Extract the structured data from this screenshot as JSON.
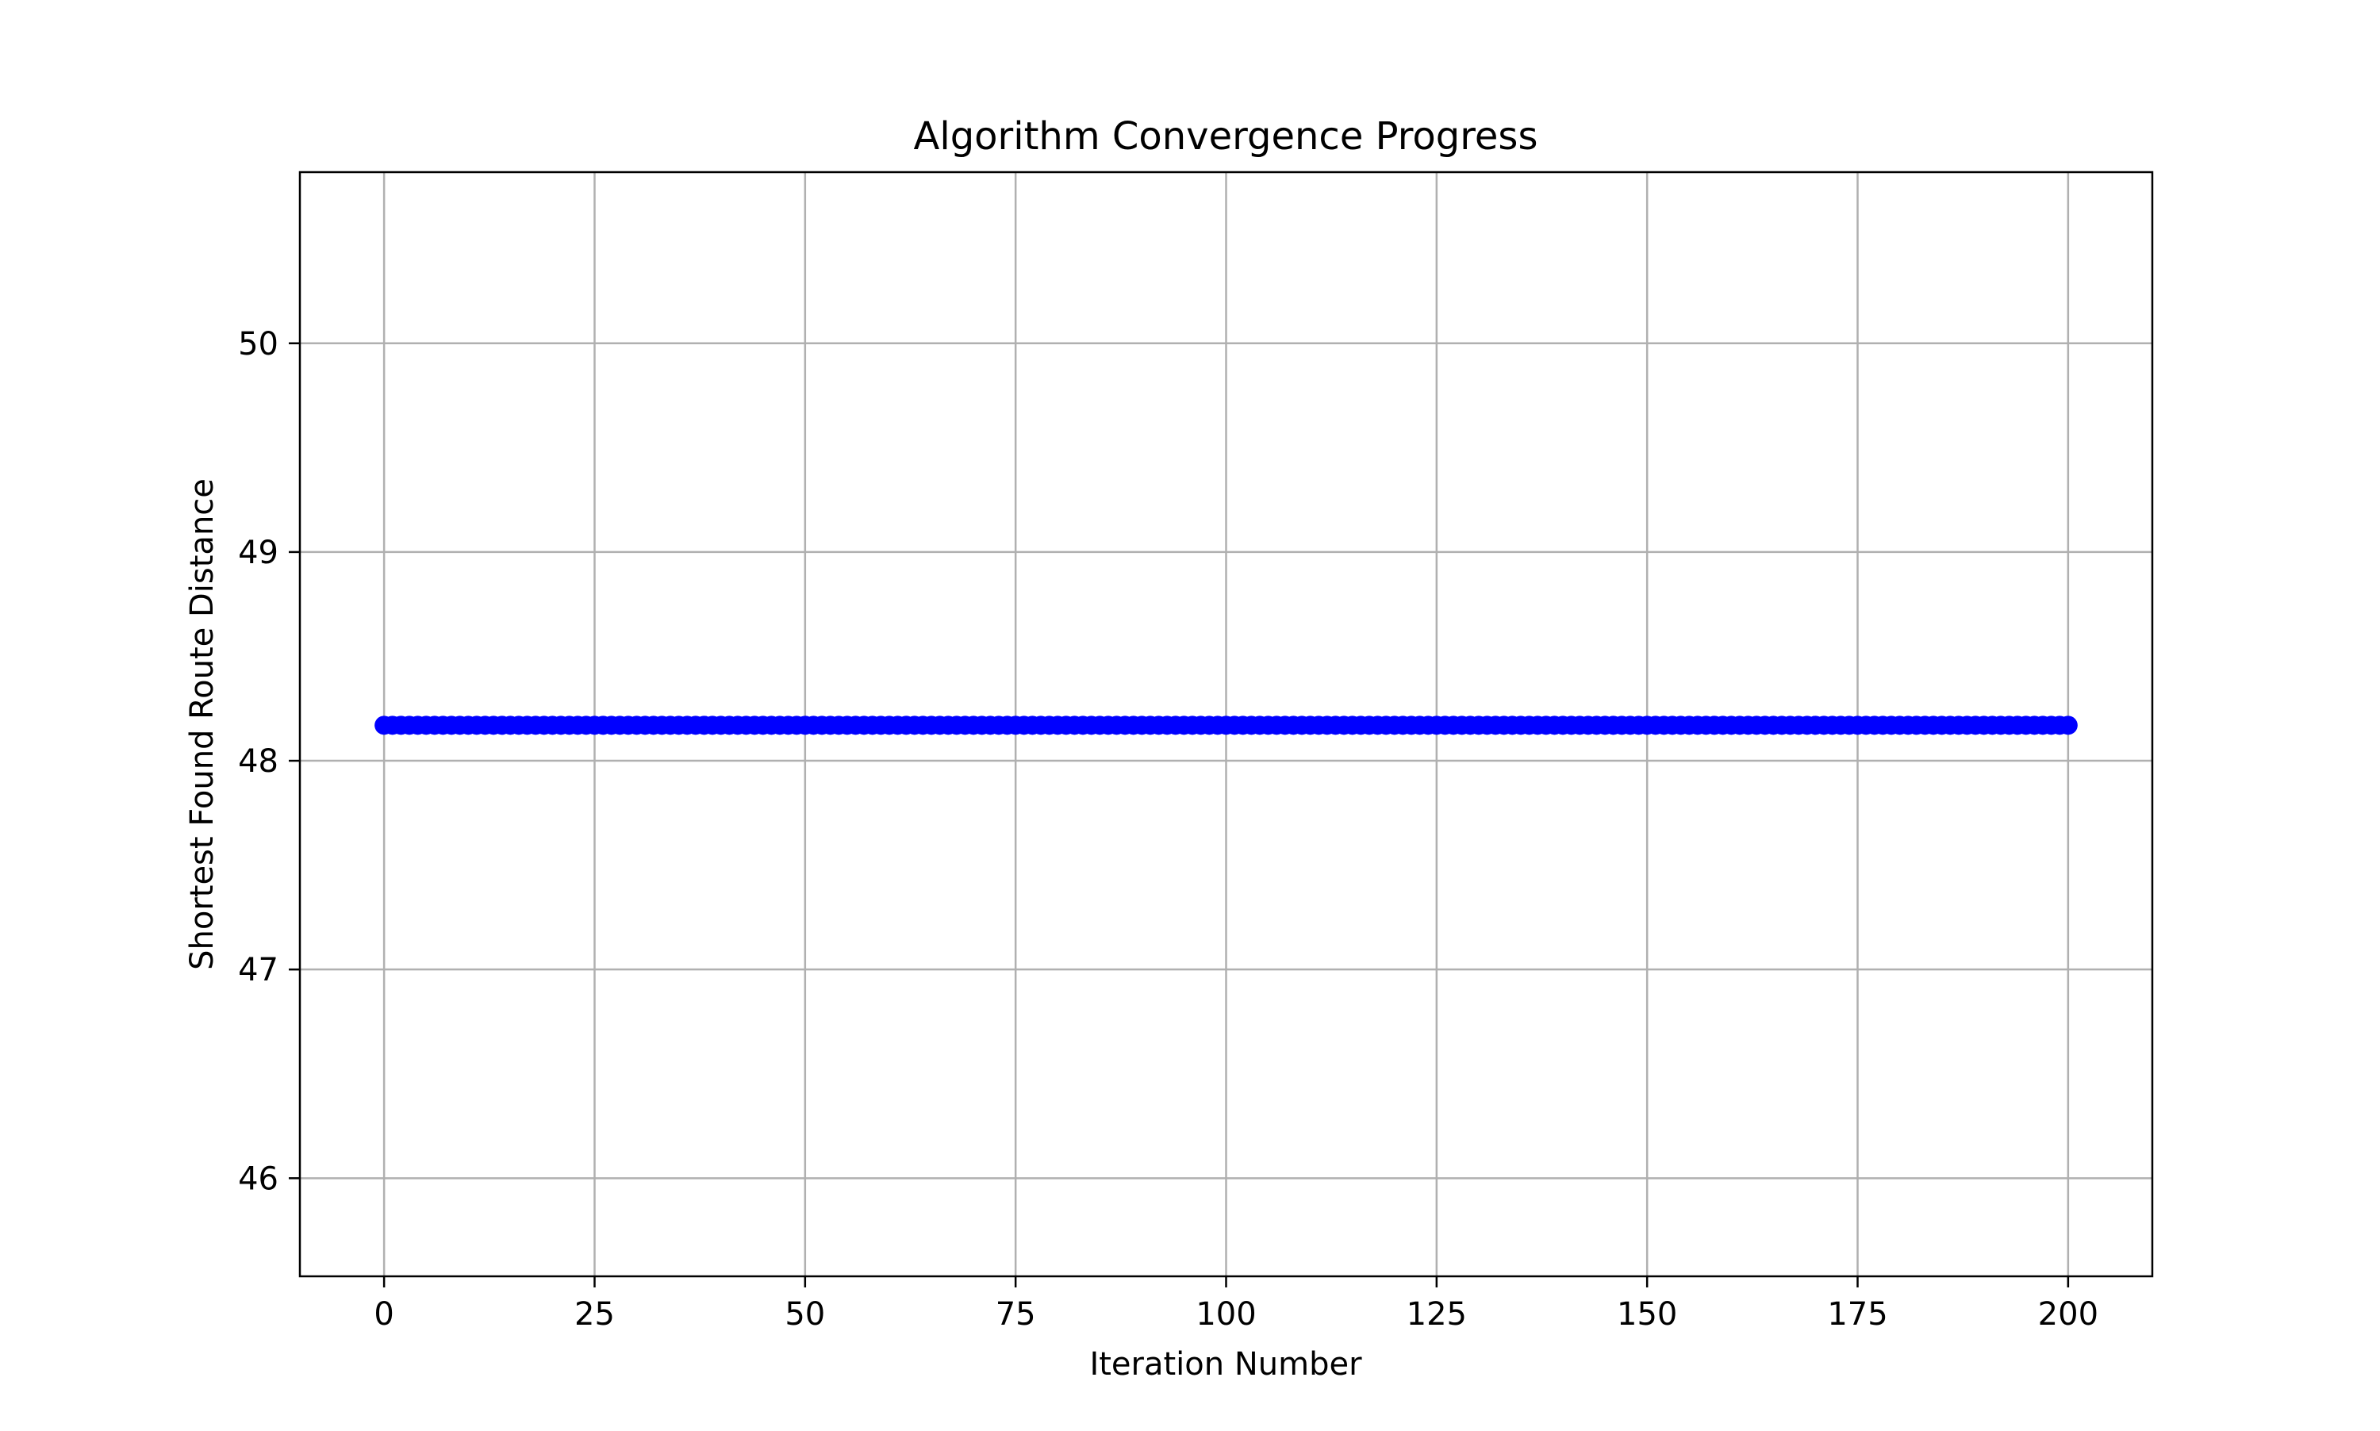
{
  "chart_data": {
    "type": "line",
    "title": "Algorithm Convergence Progress",
    "xlabel": "Iteration Number",
    "ylabel": "Shortest Found Route Distance",
    "xlim": [
      -10,
      210
    ],
    "ylim": [
      45.53,
      50.82
    ],
    "xticks": [
      0,
      25,
      50,
      75,
      100,
      125,
      150,
      175,
      200
    ],
    "yticks": [
      46,
      47,
      48,
      49,
      50
    ],
    "grid": true,
    "legend": false,
    "series": [
      {
        "color": "#0000ff",
        "marker": "circle",
        "x_start": 0,
        "x_end": 200,
        "x_step": 1,
        "constant_value": 48.17
      }
    ]
  }
}
